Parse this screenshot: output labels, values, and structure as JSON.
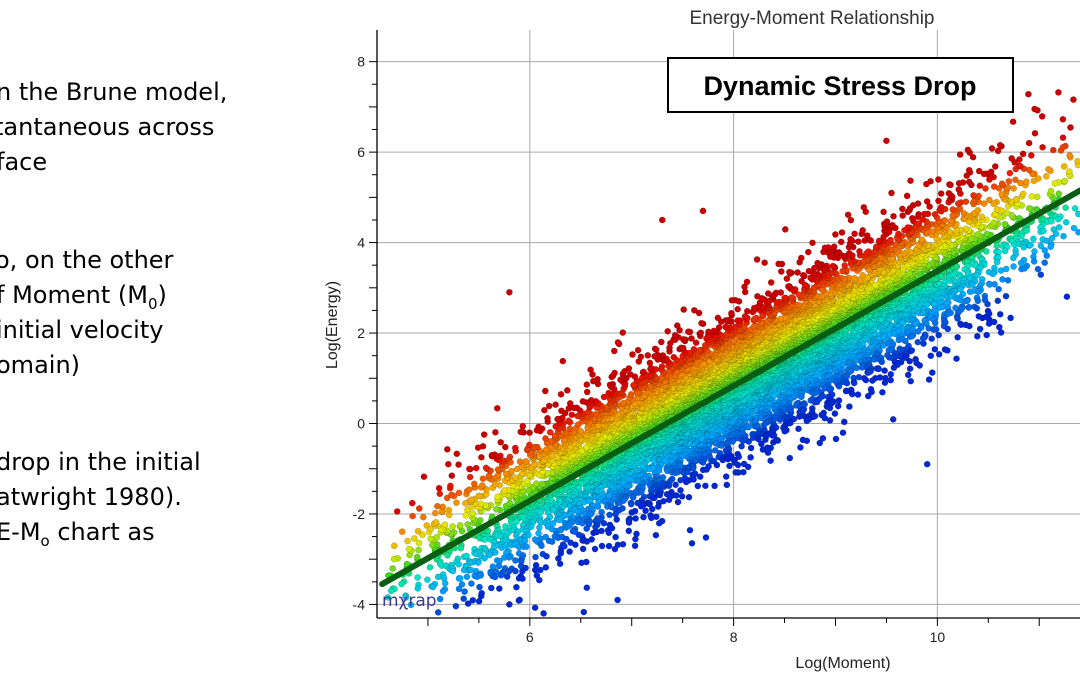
{
  "slide": {
    "text_lines": [
      {
        "pre": "n the Brune model,"
      },
      {
        "pre": "tantaneous across"
      },
      {
        "pre": "face"
      },
      {
        "pre": "o, on the other"
      },
      {
        "pre": "f Moment (M",
        "sub": "0",
        "post": ")"
      },
      {
        "pre": " initial velocity"
      },
      {
        "pre": "omain)"
      },
      {
        "pre": "drop in the initial"
      },
      {
        "pre": "atwright 1980)."
      },
      {
        "pre": " E-M",
        "sub": "o",
        "post": " chart as"
      }
    ]
  },
  "chart_data": {
    "type": "scatter",
    "title": "Energy-Moment Relationship",
    "annotation": "Dynamic Stress Drop",
    "xlabel": "Log(Moment)",
    "ylabel": "Log(Energy)",
    "xlim": [
      4.5,
      11.4
    ],
    "ylim": [
      -4.3,
      8.7
    ],
    "x_ticks": [
      6,
      8,
      10
    ],
    "y_ticks": [
      -4,
      -2,
      0,
      2,
      4,
      6,
      8
    ],
    "grid": true,
    "watermark": "mχrap",
    "color_scale": "blue-cyan-green-yellow-red by residual above fit line",
    "fit_line": {
      "color": "#0a5e14",
      "x": [
        4.55,
        11.4
      ],
      "y": [
        -3.55,
        5.15
      ]
    },
    "point_cloud": {
      "count": 9000,
      "x_range": [
        4.6,
        11.4
      ],
      "centerline": {
        "x": [
          4.55,
          11.4
        ],
        "y": [
          -3.55,
          5.15
        ]
      },
      "residual_sd": 0.85,
      "outliers": [
        {
          "x": 7.3,
          "y": 4.5
        },
        {
          "x": 7.7,
          "y": 4.7
        },
        {
          "x": 9.5,
          "y": 6.25
        },
        {
          "x": 10.3,
          "y": 6.05
        },
        {
          "x": 10.9,
          "y": 6.2
        },
        {
          "x": 5.2,
          "y": -0.9
        },
        {
          "x": 5.8,
          "y": 2.9
        },
        {
          "x": 5.8,
          "y": -4.0
        },
        {
          "x": 5.9,
          "y": -3.9
        },
        {
          "x": 4.8,
          "y": -2.6
        },
        {
          "x": 5.7,
          "y": -3.65
        },
        {
          "x": 9.9,
          "y": -0.9
        }
      ]
    }
  }
}
